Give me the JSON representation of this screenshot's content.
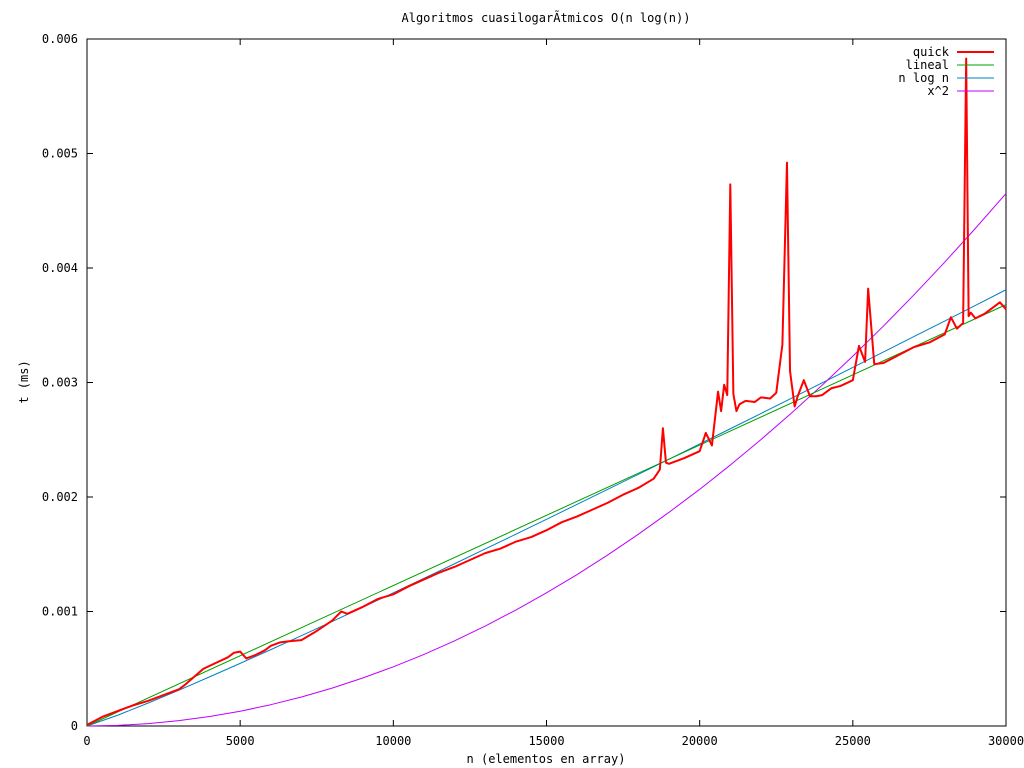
{
  "chart_data": {
    "type": "line",
    "title": "Algoritmos cuasilogarÃ­tmicos O(n log(n))",
    "xlabel": "n (elementos en array)",
    "ylabel": "t (ms)",
    "xlim": [
      0,
      30000
    ],
    "ylim": [
      0,
      0.006
    ],
    "xticks": [
      0,
      5000,
      10000,
      15000,
      20000,
      25000,
      30000
    ],
    "xtick_labels": [
      "0",
      "5000",
      "10000",
      "15000",
      "20000",
      "25000",
      "30000"
    ],
    "yticks": [
      0,
      0.001,
      0.002,
      0.003,
      0.004,
      0.005,
      0.006
    ],
    "ytick_labels": [
      "0",
      "0.001",
      "0.002",
      "0.003",
      "0.004",
      "0.005",
      "0.006"
    ],
    "grid": false,
    "legend_position": "top-right",
    "series": [
      {
        "name": "quick",
        "color": "#ff0000",
        "width": 2,
        "x": [
          0,
          500,
          1000,
          1500,
          2000,
          2500,
          3000,
          3200,
          3500,
          3800,
          4200,
          4600,
          4800,
          5000,
          5200,
          5500,
          5800,
          6000,
          6300,
          6600,
          7000,
          7500,
          8000,
          8300,
          8500,
          9000,
          9500,
          10000,
          10500,
          11000,
          11500,
          12000,
          12500,
          13000,
          13500,
          14000,
          14500,
          15000,
          15500,
          16000,
          16500,
          17000,
          17500,
          18000,
          18500,
          18700,
          18800,
          18900,
          19000,
          19500,
          20000,
          20200,
          20400,
          20600,
          20700,
          20800,
          20900,
          21000,
          21100,
          21200,
          21300,
          21500,
          21800,
          22000,
          22300,
          22500,
          22700,
          22850,
          22950,
          23100,
          23200,
          23400,
          23600,
          23800,
          24000,
          24300,
          24600,
          25000,
          25200,
          25400,
          25500,
          25700,
          26000,
          26500,
          27000,
          27500,
          28000,
          28200,
          28400,
          28600,
          28700,
          28780,
          28850,
          29000,
          29300,
          29600,
          29800,
          30000
        ],
        "y": [
          1e-05,
          8e-05,
          0.00013,
          0.00018,
          0.00022,
          0.00027,
          0.00032,
          0.00036,
          0.00043,
          0.0005,
          0.00055,
          0.0006,
          0.00064,
          0.00065,
          0.00059,
          0.00062,
          0.00066,
          0.0007,
          0.00073,
          0.00074,
          0.00075,
          0.00083,
          0.00092,
          0.001,
          0.00098,
          0.00104,
          0.00111,
          0.00115,
          0.00122,
          0.00128,
          0.00134,
          0.00139,
          0.00145,
          0.00151,
          0.00155,
          0.00161,
          0.00165,
          0.00171,
          0.00178,
          0.00183,
          0.00189,
          0.00195,
          0.00202,
          0.00208,
          0.00216,
          0.00224,
          0.0026,
          0.0023,
          0.00229,
          0.00234,
          0.0024,
          0.00256,
          0.00245,
          0.00292,
          0.00275,
          0.00298,
          0.00289,
          0.00473,
          0.0029,
          0.00275,
          0.00281,
          0.00284,
          0.00283,
          0.00287,
          0.00286,
          0.00291,
          0.00333,
          0.00492,
          0.0031,
          0.00279,
          0.00288,
          0.00302,
          0.00288,
          0.00288,
          0.00289,
          0.00295,
          0.00297,
          0.00302,
          0.00332,
          0.00318,
          0.00382,
          0.00316,
          0.00317,
          0.00324,
          0.00331,
          0.00335,
          0.00342,
          0.00357,
          0.00347,
          0.00352,
          0.00583,
          0.00358,
          0.00361,
          0.00356,
          0.0036,
          0.00366,
          0.0037,
          0.00364
        ]
      },
      {
        "name": "lineal",
        "color": "#00a000",
        "width": 1,
        "x": [
          0,
          30000
        ],
        "y": [
          0,
          0.00368
        ]
      },
      {
        "name": "n log n",
        "color": "#0080c0",
        "width": 1,
        "x": [
          0,
          1000,
          2000,
          3000,
          4000,
          5000,
          6000,
          7000,
          8000,
          9000,
          10000,
          11000,
          12000,
          13000,
          14000,
          15000,
          16000,
          17000,
          18000,
          19000,
          20000,
          21000,
          22000,
          23000,
          24000,
          25000,
          26000,
          27000,
          28000,
          29000,
          30000
        ],
        "y": [
          0,
          9.4e-05,
          0.000201,
          0.000313,
          0.000429,
          0.000547,
          0.000667,
          0.000789,
          0.000912,
          0.001037,
          0.001163,
          0.00129,
          0.001417,
          0.001546,
          0.001675,
          0.001805,
          0.001936,
          0.002067,
          0.002198,
          0.00233,
          0.002463,
          0.002596,
          0.002729,
          0.002863,
          0.002997,
          0.003132,
          0.003267,
          0.003402,
          0.003537,
          0.003673,
          0.00381
        ]
      },
      {
        "name": "x^2",
        "color": "#c000ff",
        "width": 1,
        "x": [
          0,
          1000,
          2000,
          3000,
          4000,
          5000,
          6000,
          7000,
          8000,
          9000,
          10000,
          11000,
          12000,
          13000,
          14000,
          15000,
          16000,
          17000,
          18000,
          19000,
          20000,
          21000,
          22000,
          23000,
          24000,
          25000,
          26000,
          27000,
          28000,
          29000,
          30000
        ],
        "y": [
          0,
          5.2e-06,
          2.07e-05,
          4.65e-05,
          8.27e-05,
          0.000129,
          0.000186,
          0.000253,
          0.000331,
          0.000419,
          0.000517,
          0.000625,
          0.000744,
          0.000873,
          0.001013,
          0.001163,
          0.001323,
          0.001494,
          0.001675,
          0.001866,
          0.002067,
          0.002279,
          0.002501,
          0.002734,
          0.002977,
          0.00323,
          0.003493,
          0.003767,
          0.004051,
          0.004346,
          0.00465
        ]
      }
    ]
  }
}
